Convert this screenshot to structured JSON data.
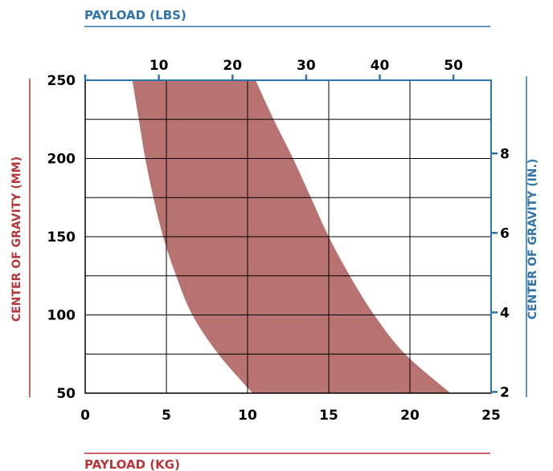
{
  "colors": {
    "band": "#b87370",
    "lbs_axis": "#2f73a8",
    "kg_axis": "#b8353a",
    "grid": "#000000"
  },
  "chart_data": {
    "type": "area",
    "title": "",
    "xlabel_top": "PAYLOAD (LBS)",
    "xlabel_bottom": "PAYLOAD (KG)",
    "ylabel_left": "CENTER OF GRAVITY (MM)",
    "ylabel_right": "CENTER OF GRAVITY (IN.)",
    "x_kg": {
      "lim": [
        0,
        25
      ],
      "ticks": [
        "0",
        "5",
        "10",
        "15",
        "20",
        "25"
      ]
    },
    "x_lbs": {
      "ticks": [
        "10",
        "20",
        "30",
        "40",
        "50"
      ],
      "values": [
        10,
        20,
        30,
        40,
        50
      ]
    },
    "y_mm": {
      "lim": [
        50,
        250
      ],
      "ticks": [
        "50",
        "100",
        "150",
        "200",
        "250"
      ]
    },
    "y_in": {
      "ticks": [
        "2",
        "4",
        "6",
        "8"
      ],
      "values": [
        2,
        4,
        6,
        8
      ]
    },
    "grid": true,
    "series": [
      {
        "lower_bound": [
          {
            "cog_mm": 250,
            "payload_kg": 2.9
          },
          {
            "cog_mm": 225,
            "payload_kg": 3.3
          },
          {
            "cog_mm": 200,
            "payload_kg": 3.7
          },
          {
            "cog_mm": 175,
            "payload_kg": 4.2
          },
          {
            "cog_mm": 150,
            "payload_kg": 4.8
          },
          {
            "cog_mm": 125,
            "payload_kg": 5.6
          },
          {
            "cog_mm": 100,
            "payload_kg": 6.6
          },
          {
            "cog_mm": 75,
            "payload_kg": 8.2
          },
          {
            "cog_mm": 50,
            "payload_kg": 10.3
          }
        ],
        "upper_bound": [
          {
            "cog_mm": 250,
            "payload_kg": 10.5
          },
          {
            "cog_mm": 225,
            "payload_kg": 11.6
          },
          {
            "cog_mm": 200,
            "payload_kg": 12.8
          },
          {
            "cog_mm": 175,
            "payload_kg": 13.9
          },
          {
            "cog_mm": 150,
            "payload_kg": 15.0
          },
          {
            "cog_mm": 125,
            "payload_kg": 16.3
          },
          {
            "cog_mm": 100,
            "payload_kg": 17.8
          },
          {
            "cog_mm": 75,
            "payload_kg": 19.7
          },
          {
            "cog_mm": 50,
            "payload_kg": 22.5
          }
        ]
      }
    ]
  }
}
